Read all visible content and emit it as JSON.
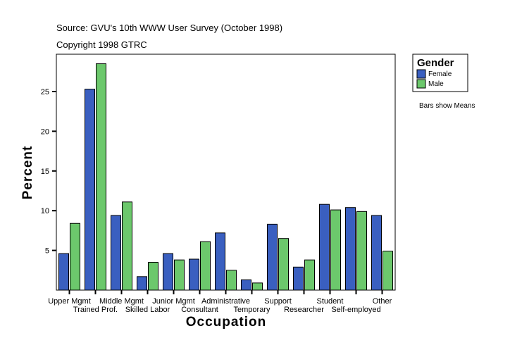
{
  "chart_data": {
    "type": "bar",
    "title": "Source: GVU's 10th WWW User Survey (October 1998)",
    "subtitle": "Copyright 1998 GTRC",
    "xlabel": "Occupation",
    "ylabel": "Percent",
    "ylim": [
      0,
      29.7
    ],
    "yticks": [
      5,
      10,
      15,
      20,
      25
    ],
    "grid": false,
    "legend_title": "Gender",
    "legend_position": "right",
    "note": "Bars show Means",
    "categories": [
      "Upper Mgmt",
      "Trained Prof.",
      "Middle Mgmt",
      "Skilled Labor",
      "Junior Mgmt",
      "Consultant",
      "Administrative",
      "Temporary",
      "Support",
      "Researcher",
      "Student",
      "Self-employed",
      "Other"
    ],
    "series": [
      {
        "name": "Female",
        "color": "#3a5fc0",
        "values": [
          4.6,
          25.3,
          9.4,
          1.7,
          4.6,
          3.9,
          7.2,
          1.3,
          8.3,
          2.9,
          10.8,
          10.4,
          9.4
        ]
      },
      {
        "name": "Male",
        "color": "#6cc86c",
        "values": [
          8.4,
          28.5,
          11.1,
          3.5,
          3.8,
          6.1,
          2.5,
          0.9,
          6.5,
          3.8,
          10.1,
          9.9,
          4.9
        ]
      }
    ]
  }
}
